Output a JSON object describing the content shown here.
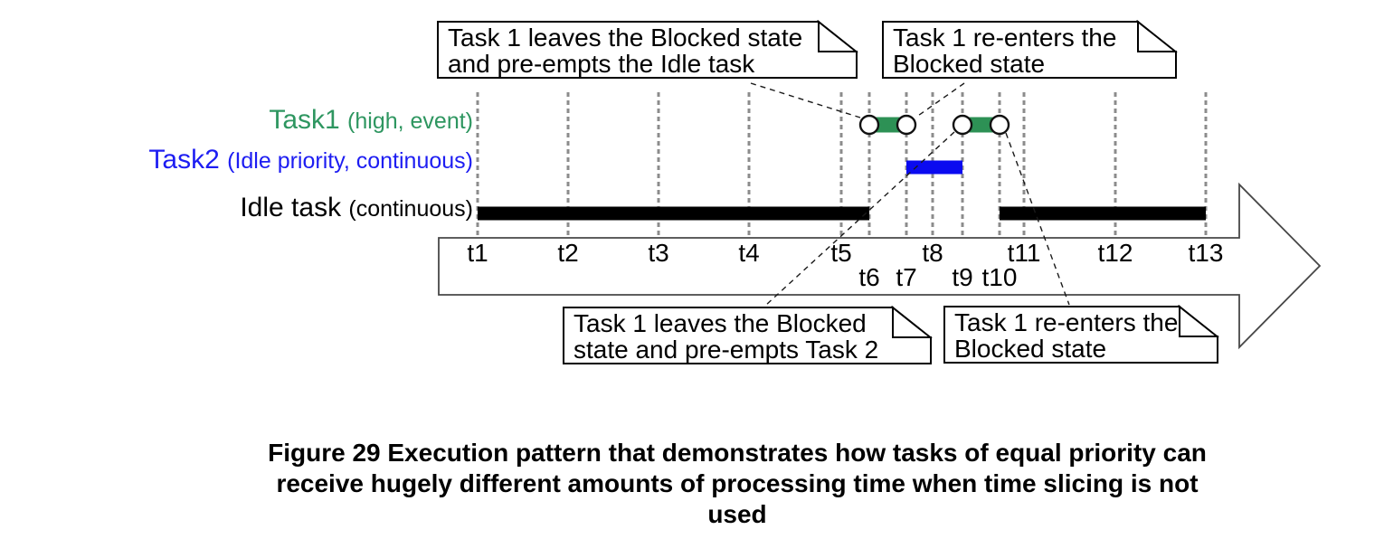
{
  "callouts": [
    {
      "id": "top-left",
      "lines": [
        "Task 1 leaves the Blocked state",
        "and pre-empts the Idle task"
      ]
    },
    {
      "id": "top-right",
      "lines": [
        "Task 1 re-enters the",
        "Blocked state"
      ]
    },
    {
      "id": "bottom-left",
      "lines": [
        "Task 1 leaves the Blocked",
        "state and pre-empts Task 2"
      ]
    },
    {
      "id": "bottom-right",
      "lines": [
        "Task 1 re-enters the",
        "Blocked state"
      ]
    }
  ],
  "rows": [
    {
      "task": "task1",
      "name": "Task1",
      "detail": "(high, event)",
      "color": "#2e9660"
    },
    {
      "task": "task2",
      "name": "Task2",
      "detail": "(Idle priority, continuous)",
      "color": "#1d1df2"
    },
    {
      "task": "idle",
      "name": "Idle task",
      "detail": "(continuous)",
      "color": "#000000"
    }
  ],
  "timeline": {
    "ticks": [
      "t1",
      "t2",
      "t3",
      "t4",
      "t5",
      "t6",
      "t7",
      "t8",
      "t9",
      "t10",
      "t11",
      "t12",
      "t13"
    ]
  },
  "execution": {
    "segments": [
      {
        "task": "idle",
        "from": "t1",
        "to": "t6"
      },
      {
        "task": "task1",
        "from": "t6",
        "to": "t7"
      },
      {
        "task": "task2",
        "from": "t7",
        "to": "t9"
      },
      {
        "task": "task1",
        "from": "t9",
        "to": "t10"
      },
      {
        "task": "idle",
        "from": "t10",
        "to": "t13"
      }
    ],
    "markers": [
      "t6",
      "t7",
      "t9",
      "t10"
    ]
  },
  "colors": {
    "task1_bar": "#2d9155",
    "task2_bar": "#0a0af0",
    "idle_bar": "#000000",
    "gridline": "#8c8c8c",
    "leader": "#1a1a1a",
    "timeline_outline": "#474747"
  },
  "caption": {
    "lines": [
      "Figure 29 Execution pattern that demonstrates how tasks of equal priority can",
      "receive hugely different amounts of processing time when time slicing is not",
      "used"
    ]
  }
}
